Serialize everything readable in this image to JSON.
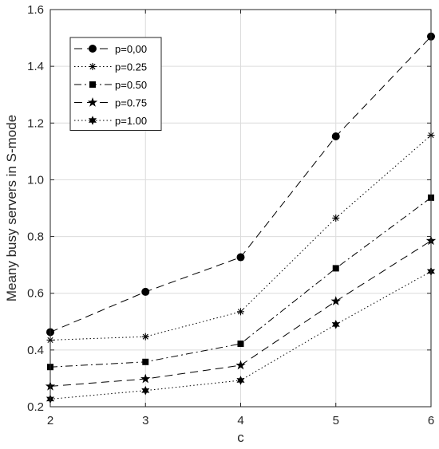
{
  "chart_data": {
    "type": "line",
    "xlabel": "c",
    "ylabel": "Meany busy servers in S-mode",
    "xlim": [
      2,
      6
    ],
    "ylim": [
      0.2,
      1.6
    ],
    "xticks": [
      2,
      3,
      4,
      5,
      6
    ],
    "yticks": [
      "0.2",
      "0.4",
      "0.6",
      "0.8",
      "1.0",
      "1.2",
      "1.4",
      "1.6"
    ],
    "grid": true,
    "legend_position": "top-left",
    "x": [
      2,
      3,
      4,
      5,
      6
    ],
    "series": [
      {
        "name": "p=0,00",
        "values": [
          0.463,
          0.605,
          0.727,
          1.153,
          1.505
        ],
        "marker": "circle",
        "dash": "dashed"
      },
      {
        "name": "p=0.25",
        "values": [
          0.435,
          0.447,
          0.535,
          0.865,
          1.157
        ],
        "marker": "asterisk",
        "dash": "dotted"
      },
      {
        "name": "p=0.50",
        "values": [
          0.34,
          0.358,
          0.422,
          0.688,
          0.937
        ],
        "marker": "square",
        "dash": "dashdot"
      },
      {
        "name": "p=0.75",
        "values": [
          0.272,
          0.298,
          0.346,
          0.572,
          0.785
        ],
        "marker": "star5",
        "dash": "dashed"
      },
      {
        "name": "p=1.00",
        "values": [
          0.227,
          0.257,
          0.293,
          0.49,
          0.677
        ],
        "marker": "star6",
        "dash": "dotted"
      }
    ]
  }
}
